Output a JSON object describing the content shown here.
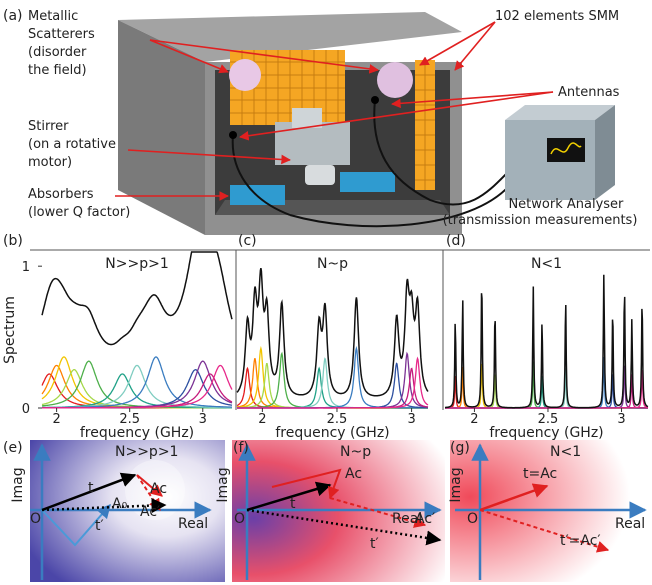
{
  "panel_a": {
    "label": "(a)",
    "scatterers": [
      "Metallic",
      "Scatterers",
      "(disorder",
      "the field)"
    ],
    "smm": "102 elements SMM",
    "antennas": "Antennas",
    "stirrer": [
      "Stirrer",
      "(on a rotative",
      "motor)"
    ],
    "absorbers": [
      "Absorbers",
      "(lower Q factor)"
    ],
    "analyser": [
      "Network Analyser",
      "(transmission measurements)"
    ]
  },
  "spectra": [
    {
      "label": "(b)",
      "title": "N>>p>1",
      "ylabel": "Spectrum",
      "xlabel": "frequency (GHz)",
      "xlim": [
        1.9,
        3.2
      ],
      "xticks": [
        2,
        2.5,
        3
      ],
      "ylim": [
        0,
        1.1
      ],
      "yticks": [
        0,
        1
      ]
    },
    {
      "label": "(c)",
      "title": "N~p",
      "xlabel": "frequency (GHz)",
      "xlim": [
        1.83,
        3.11
      ],
      "xticks": [
        2,
        2.5,
        3
      ],
      "ylim": [
        0,
        1.1
      ]
    },
    {
      "label": "(d)",
      "title": "N<1",
      "xlabel": "frequency (GHz)",
      "xlim": [
        1.8,
        3.18
      ],
      "xticks": [
        2,
        2.5,
        3
      ],
      "ylim": [
        0,
        1.1
      ]
    }
  ],
  "planes": [
    {
      "label": "(e)",
      "title": "N>>p>1",
      "imag": "Imag",
      "real": "Real",
      "origin": "O",
      "t": "t",
      "tp": "t′",
      "ac": "Ac",
      "acp": "Ac′",
      "a0": "A₀"
    },
    {
      "label": "(f)",
      "title": "N~p",
      "imag": "Imag",
      "real": "Real",
      "origin": "O",
      "t": "t",
      "tp": "t′",
      "ac": "Ac",
      "acp": "Ac′"
    },
    {
      "label": "(g)",
      "title": "N<1",
      "imag": "Imag",
      "real": "Real",
      "origin": "O",
      "t": "t=Ac",
      "tp": "t′=Ac′"
    }
  ]
}
